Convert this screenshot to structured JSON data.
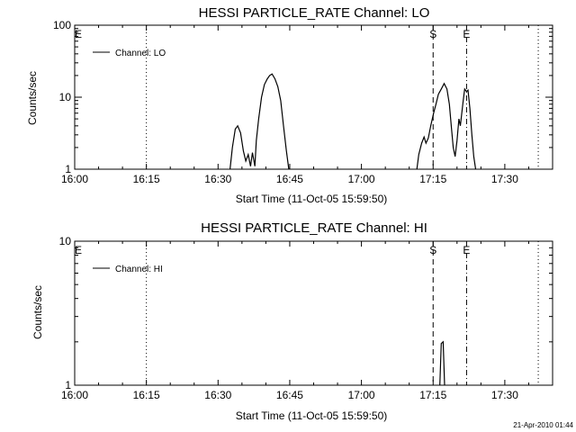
{
  "chart_data": [
    {
      "type": "line",
      "title": "HESSI PARTICLE_RATE Channel: LO",
      "xlabel": "Start Time (11-Oct-05 15:59:50)",
      "ylabel": "Counts/sec",
      "y_scale": "log",
      "ylim": [
        1,
        100
      ],
      "xlim_minutes": [
        0,
        100
      ],
      "x_ticks": [
        "16:00",
        "16:15",
        "16:30",
        "16:45",
        "17:00",
        "17:15",
        "17:30"
      ],
      "y_ticks": [
        "1",
        "10",
        "100"
      ],
      "legend": {
        "label": "Channel: LO",
        "position": "top-left"
      },
      "markers": [
        {
          "label": "E",
          "style": "solid"
        },
        {
          "label": "S",
          "style": "dashed"
        },
        {
          "label": "E",
          "style": "dash-dot"
        }
      ],
      "vlines": [
        {
          "time": "16:15",
          "style": "dotted"
        },
        {
          "time": "17:15",
          "style": "dashed"
        },
        {
          "time": "17:22",
          "style": "dash-dot"
        },
        {
          "time": "17:37",
          "style": "dotted"
        }
      ],
      "series": [
        {
          "name": "Channel: LO",
          "segments": [
            [
              [
                32.5,
                1
              ],
              [
                33.0,
                2.0
              ],
              [
                33.6,
                3.6
              ],
              [
                34.1,
                4.0
              ],
              [
                34.7,
                3.2
              ],
              [
                35.3,
                1.8
              ],
              [
                35.8,
                1.3
              ],
              [
                36.3,
                1.6
              ],
              [
                36.8,
                1.1
              ],
              [
                37.2,
                1.7
              ],
              [
                37.7,
                1.1
              ],
              [
                38.0,
                2.5
              ],
              [
                38.5,
                5.0
              ],
              [
                39.1,
                10.0
              ],
              [
                39.7,
                15.0
              ],
              [
                40.3,
                18.0
              ],
              [
                40.8,
                20.0
              ],
              [
                41.3,
                21.0
              ],
              [
                41.9,
                18.0
              ],
              [
                42.5,
                14.0
              ],
              [
                43.1,
                9.0
              ],
              [
                43.7,
                4.0
              ],
              [
                44.3,
                1.8
              ],
              [
                44.8,
                1
              ]
            ],
            [
              [
                71.6,
                1
              ],
              [
                72.0,
                1.6
              ],
              [
                72.6,
                2.3
              ],
              [
                73.1,
                2.8
              ],
              [
                73.5,
                2.3
              ],
              [
                74.0,
                2.7
              ],
              [
                74.5,
                4.0
              ],
              [
                75.1,
                6.0
              ],
              [
                75.6,
                8.0
              ],
              [
                76.1,
                11.0
              ],
              [
                76.7,
                13.0
              ],
              [
                77.3,
                15.5
              ],
              [
                77.9,
                13.0
              ],
              [
                78.4,
                8.0
              ],
              [
                78.8,
                4.0
              ],
              [
                79.2,
                2.0
              ],
              [
                79.6,
                1.5
              ],
              [
                80.0,
                2.5
              ],
              [
                80.4,
                5.0
              ],
              [
                80.7,
                4.0
              ],
              [
                81.0,
                6.0
              ],
              [
                81.3,
                9.0
              ],
              [
                81.6,
                13.0
              ],
              [
                82.0,
                12.0
              ],
              [
                82.3,
                12.5
              ],
              [
                82.7,
                7.0
              ],
              [
                83.1,
                3.0
              ],
              [
                83.5,
                1.5
              ],
              [
                83.9,
                1
              ]
            ]
          ]
        }
      ]
    },
    {
      "type": "line",
      "title": "HESSI PARTICLE_RATE Channel: HI",
      "xlabel": "Start Time (11-Oct-05 15:59:50)",
      "ylabel": "Counts/sec",
      "y_scale": "log",
      "ylim": [
        1,
        10
      ],
      "xlim_minutes": [
        0,
        100
      ],
      "x_ticks": [
        "16:00",
        "16:15",
        "16:30",
        "16:45",
        "17:00",
        "17:15",
        "17:30"
      ],
      "y_ticks": [
        "1",
        "10"
      ],
      "legend": {
        "label": "Channel: HI",
        "position": "top-left"
      },
      "markers": [
        {
          "label": "E",
          "style": "solid"
        },
        {
          "label": "S",
          "style": "dashed"
        },
        {
          "label": "E",
          "style": "dash-dot"
        }
      ],
      "vlines": [
        {
          "time": "16:15",
          "style": "dotted"
        },
        {
          "time": "17:15",
          "style": "dashed"
        },
        {
          "time": "17:22",
          "style": "dash-dot"
        },
        {
          "time": "17:37",
          "style": "dotted"
        }
      ],
      "series": [
        {
          "name": "Channel: HI",
          "segments": [
            [
              [
                76.4,
                1
              ],
              [
                76.7,
                1.95
              ],
              [
                77.1,
                2.0
              ],
              [
                77.4,
                1
              ]
            ]
          ]
        }
      ]
    }
  ],
  "timestamp": "21-Apr-2010 01:44"
}
